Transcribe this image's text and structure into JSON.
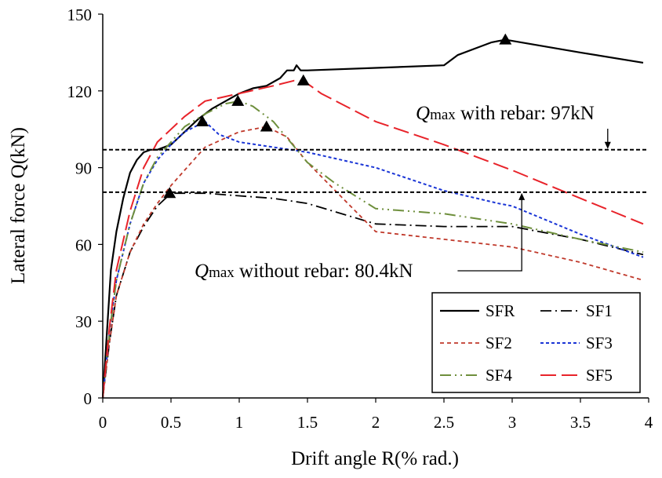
{
  "chart_data": {
    "type": "line",
    "title": "",
    "xlabel": "Drift angle R(% rad.)",
    "ylabel": "Lateral force Q(kN)",
    "xlim": [
      0,
      4
    ],
    "ylim": [
      0,
      150
    ],
    "xticks": [
      0,
      0.5,
      1,
      1.5,
      2,
      2.5,
      3,
      3.5,
      4
    ],
    "xtick_labels": [
      "0",
      "0.5",
      "1",
      "1.5",
      "2",
      "2.5",
      "3",
      "3.5",
      "4"
    ],
    "yticks": [
      0,
      30,
      60,
      90,
      120,
      150
    ],
    "ytick_labels": [
      "0",
      "30",
      "60",
      "90",
      "120",
      "150"
    ],
    "grid": false,
    "legend_position": "bottom-right",
    "reference_lines": [
      {
        "y": 97,
        "style": "dashed",
        "color": "#000000",
        "q": "Q",
        "sub": "max",
        "text": " with rebar: 97kN"
      },
      {
        "y": 80.4,
        "style": "dashed",
        "color": "#000000",
        "q": "Q",
        "sub": "max",
        "text": " without rebar: 80.4kN"
      }
    ],
    "series": [
      {
        "name": "SFR",
        "color": "#000000",
        "dash": "",
        "width": 2.2,
        "x": [
          0,
          0.03,
          0.06,
          0.1,
          0.15,
          0.2,
          0.25,
          0.3,
          0.35,
          0.4,
          0.5,
          0.6,
          0.7,
          0.8,
          0.9,
          1.0,
          1.1,
          1.2,
          1.3,
          1.35,
          1.4,
          1.42,
          1.45,
          1.5,
          2.0,
          2.5,
          2.6,
          2.75,
          2.85,
          2.95,
          3.5,
          3.96
        ],
        "y": [
          0,
          25,
          50,
          65,
          78,
          88,
          93,
          96,
          97,
          97,
          99,
          104,
          109,
          113,
          116,
          119,
          121,
          122,
          125,
          128,
          128,
          130,
          128,
          128,
          129,
          130,
          134,
          137,
          139,
          140,
          135,
          131
        ]
      },
      {
        "name": "SF1",
        "color": "#000000",
        "dash": "14 5 2 5",
        "width": 1.8,
        "x": [
          0,
          0.05,
          0.1,
          0.2,
          0.3,
          0.4,
          0.5,
          0.75,
          1.0,
          1.25,
          1.5,
          2.0,
          2.5,
          3.0,
          3.5,
          3.96
        ],
        "y": [
          0,
          22,
          40,
          57,
          67,
          75,
          80,
          80,
          79,
          78,
          76,
          68,
          67,
          67,
          62,
          56
        ]
      },
      {
        "name": "SF2",
        "color": "#c0392b",
        "dash": "5 4",
        "width": 1.8,
        "x": [
          0,
          0.05,
          0.1,
          0.2,
          0.3,
          0.4,
          0.5,
          0.75,
          1.0,
          1.2,
          1.35,
          1.5,
          2.0,
          2.5,
          3.0,
          3.5,
          3.96
        ],
        "y": [
          0,
          22,
          40,
          57,
          68,
          76,
          83,
          98,
          104,
          106,
          102,
          92,
          65,
          62,
          59,
          53,
          46
        ]
      },
      {
        "name": "SF3",
        "color": "#1a35d6",
        "dash": "4 3",
        "width": 2,
        "x": [
          0,
          0.05,
          0.1,
          0.2,
          0.3,
          0.4,
          0.5,
          0.6,
          0.75,
          0.85,
          1.0,
          1.25,
          1.5,
          2.0,
          2.5,
          2.9,
          3.0,
          3.5,
          3.96
        ],
        "y": [
          0,
          26,
          46,
          68,
          84,
          93,
          99,
          104,
          108,
          103,
          100,
          98,
          96,
          90,
          81,
          76,
          75,
          64,
          55
        ]
      },
      {
        "name": "SF4",
        "color": "#6e8f3c",
        "dash": "14 5 2 5 2 5",
        "width": 2,
        "x": [
          0,
          0.05,
          0.1,
          0.2,
          0.3,
          0.4,
          0.5,
          0.6,
          0.75,
          0.9,
          1.0,
          1.1,
          1.25,
          1.5,
          1.7,
          2.0,
          2.5,
          3.0,
          3.5,
          3.96
        ],
        "y": [
          0,
          26,
          46,
          68,
          84,
          94,
          100,
          106,
          111,
          115,
          116,
          114,
          108,
          92,
          84,
          74,
          72,
          68,
          62,
          57
        ]
      },
      {
        "name": "SF5",
        "color": "#e8232a",
        "dash": "20 7",
        "width": 2,
        "x": [
          0,
          0.05,
          0.1,
          0.2,
          0.3,
          0.4,
          0.5,
          0.6,
          0.75,
          1.0,
          1.25,
          1.4,
          1.47,
          1.6,
          2.0,
          2.5,
          3.0,
          3.5,
          3.96
        ],
        "y": [
          0,
          28,
          50,
          73,
          90,
          100,
          105,
          110,
          116,
          119,
          122,
          124,
          124,
          119,
          108,
          99,
          89,
          78,
          68
        ]
      }
    ],
    "peak_markers": [
      {
        "x": 2.95,
        "y": 140
      },
      {
        "x": 0.49,
        "y": 80
      },
      {
        "x": 1.2,
        "y": 106
      },
      {
        "x": 0.73,
        "y": 108
      },
      {
        "x": 0.99,
        "y": 116
      },
      {
        "x": 1.47,
        "y": 124
      }
    ]
  }
}
